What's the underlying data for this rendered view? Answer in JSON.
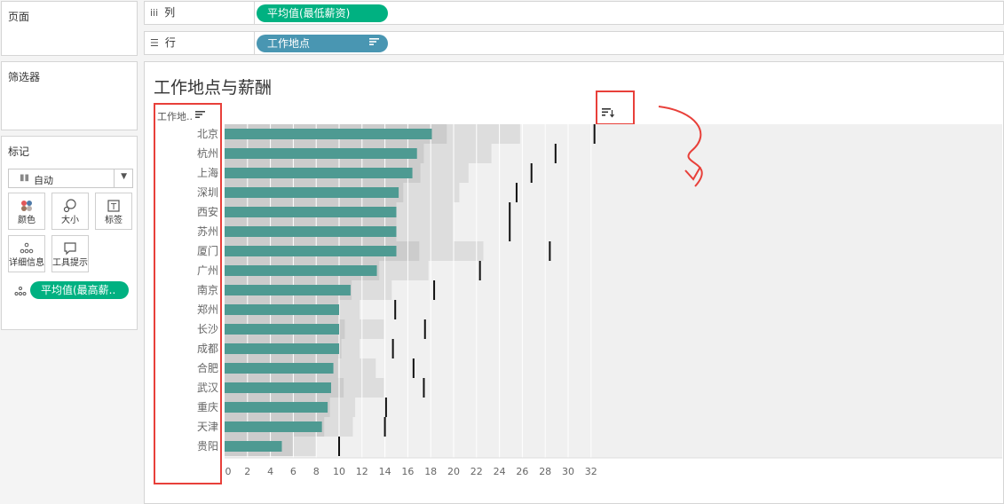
{
  "panels": {
    "pages": {
      "title": "页面"
    },
    "filters": {
      "title": "筛选器"
    },
    "marks": {
      "title": "标记",
      "mark_type": "自动",
      "buttons": [
        {
          "label": "颜色",
          "icon": "color-icon"
        },
        {
          "label": "大小",
          "icon": "size-icon"
        },
        {
          "label": "标签",
          "icon": "label-icon"
        },
        {
          "label": "详细信息",
          "icon": "detail-icon"
        },
        {
          "label": "工具提示",
          "icon": "tooltip-icon"
        }
      ],
      "detail_pill": "平均值(最高薪.."
    }
  },
  "shelves": {
    "columns": {
      "label": "列",
      "pill": "平均值(最低薪资)"
    },
    "rows": {
      "label": "行",
      "pill": "工作地点"
    }
  },
  "view": {
    "title": "工作地点与薪酬",
    "row_header": "工作地.."
  },
  "colors": {
    "bar": "#4e9a92",
    "accent_green": "#00b181",
    "accent_blue": "#4996b2",
    "annotation": "#e8403a"
  },
  "chart_data": {
    "type": "bar",
    "orientation": "horizontal",
    "categories": [
      "北京",
      "杭州",
      "上海",
      "深圳",
      "西安",
      "苏州",
      "厦门",
      "广州",
      "南京",
      "郑州",
      "长沙",
      "成都",
      "合肥",
      "武汉",
      "重庆",
      "天津",
      "贵阳"
    ],
    "series": [
      {
        "values": [
          18.1,
          16.8,
          16.4,
          15.2,
          15.0,
          15.0,
          15.0,
          13.3,
          11.0,
          10.0,
          10.0,
          10.0,
          9.5,
          9.3,
          9.0,
          8.5,
          5.0
        ]
      }
    ],
    "reference_marks": [
      32.3,
      28.9,
      26.8,
      25.5,
      24.9,
      24.9,
      28.4,
      22.3,
      18.3,
      14.9,
      17.5,
      14.7,
      16.5,
      17.4,
      14.1,
      14.0,
      10.0
    ],
    "band_values": [
      25.8,
      23.3,
      21.3,
      20.5,
      20.0,
      20.0,
      22.6,
      17.8,
      14.6,
      11.8,
      13.9,
      11.8,
      13.2,
      13.9,
      11.4,
      11.2,
      8.0
    ],
    "inner_band_values": [
      19.4,
      17.4,
      17.1,
      15.6,
      15.0,
      15.0,
      17.0,
      13.5,
      11.1,
      10.0,
      10.5,
      10.2,
      9.9,
      10.4,
      9.2,
      8.7,
      6.0
    ],
    "xticks": [
      0,
      2,
      4,
      6,
      8,
      10,
      12,
      14,
      16,
      18,
      20,
      22,
      24,
      26,
      28,
      30,
      32
    ],
    "xlim": [
      0,
      34
    ]
  }
}
